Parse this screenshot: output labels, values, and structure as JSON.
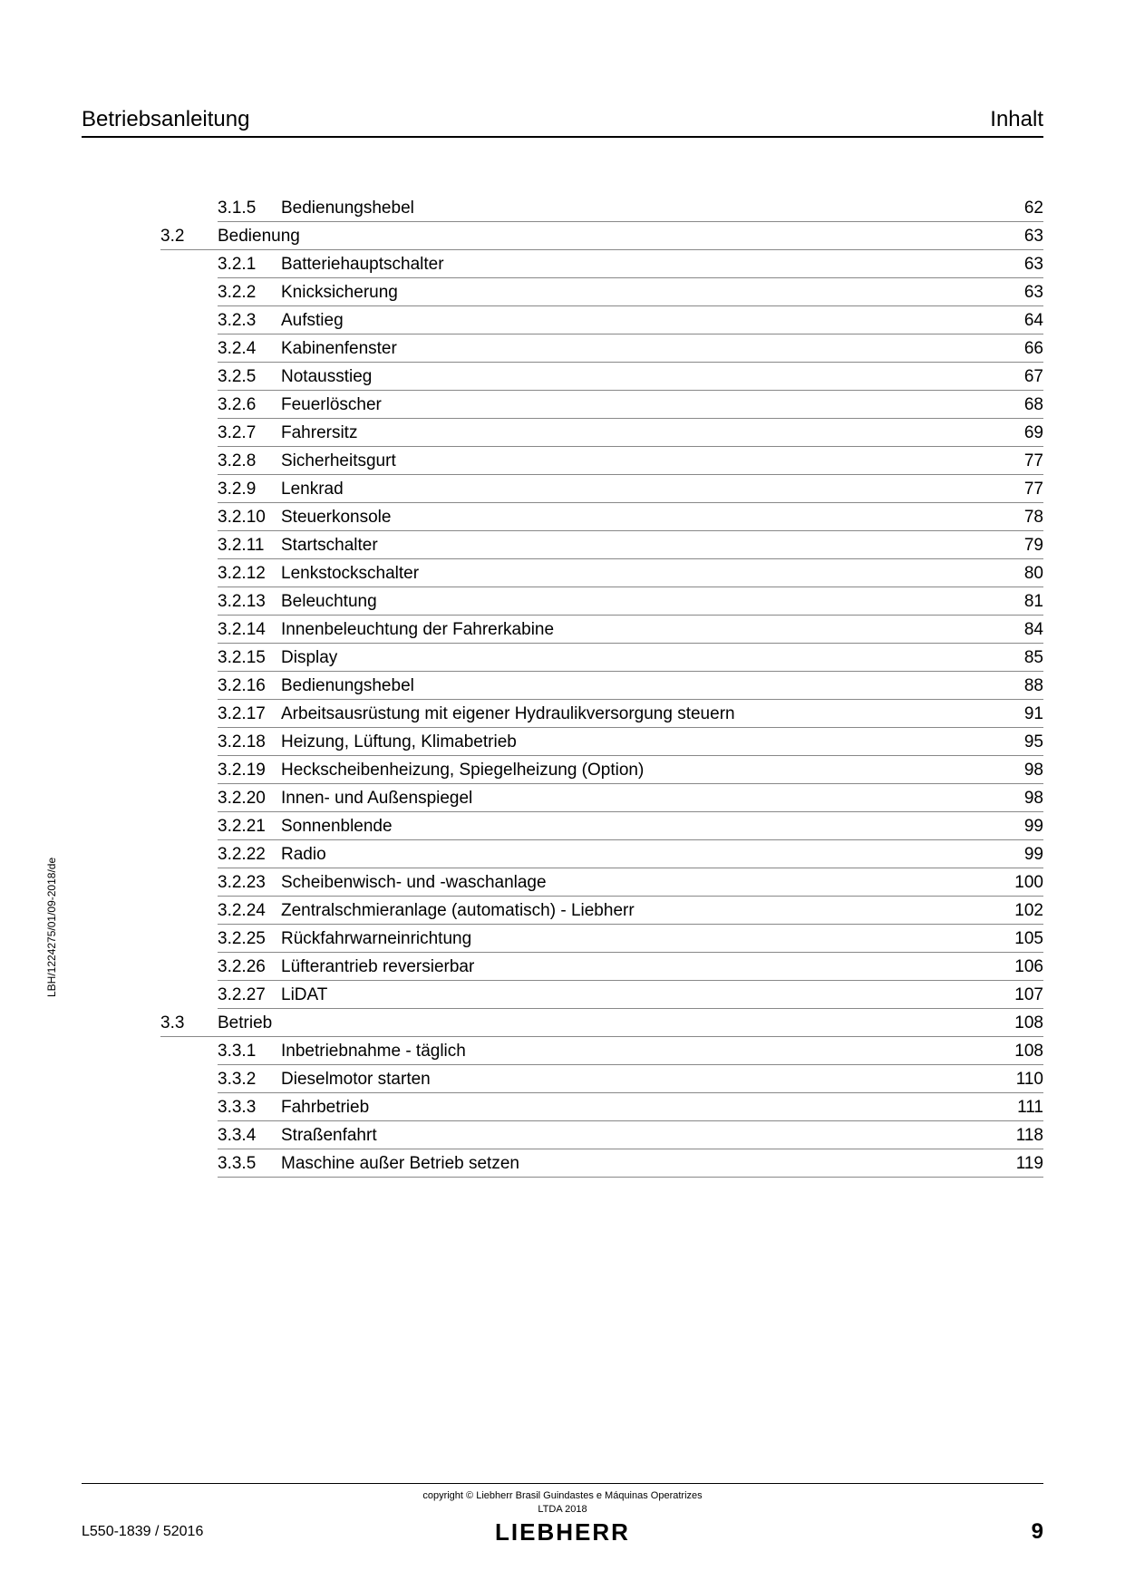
{
  "header": {
    "left": "Betriebsanleitung",
    "right": "Inhalt"
  },
  "toc": {
    "entries": [
      {
        "type": "sub",
        "num": "3.1.5",
        "title": "Bedienungshebel",
        "page": "62"
      },
      {
        "type": "section",
        "num": "3.2",
        "title": "Bedienung",
        "page": "63"
      },
      {
        "type": "sub",
        "num": "3.2.1",
        "title": "Batteriehauptschalter",
        "page": "63"
      },
      {
        "type": "sub",
        "num": "3.2.2",
        "title": "Knicksicherung",
        "page": "63"
      },
      {
        "type": "sub",
        "num": "3.2.3",
        "title": "Aufstieg",
        "page": "64"
      },
      {
        "type": "sub",
        "num": "3.2.4",
        "title": "Kabinenfenster",
        "page": "66"
      },
      {
        "type": "sub",
        "num": "3.2.5",
        "title": "Notausstieg",
        "page": "67"
      },
      {
        "type": "sub",
        "num": "3.2.6",
        "title": "Feuerlöscher",
        "page": "68"
      },
      {
        "type": "sub",
        "num": "3.2.7",
        "title": "Fahrersitz",
        "page": "69"
      },
      {
        "type": "sub",
        "num": "3.2.8",
        "title": "Sicherheitsgurt",
        "page": "77"
      },
      {
        "type": "sub",
        "num": "3.2.9",
        "title": "Lenkrad",
        "page": "77"
      },
      {
        "type": "sub",
        "num": "3.2.10",
        "title": "Steuerkonsole",
        "page": "78"
      },
      {
        "type": "sub",
        "num": "3.2.11",
        "title": "Startschalter",
        "page": "79"
      },
      {
        "type": "sub",
        "num": "3.2.12",
        "title": "Lenkstockschalter",
        "page": "80"
      },
      {
        "type": "sub",
        "num": "3.2.13",
        "title": "Beleuchtung",
        "page": "81"
      },
      {
        "type": "sub",
        "num": "3.2.14",
        "title": "Innenbeleuchtung der Fahrerkabine",
        "page": "84"
      },
      {
        "type": "sub",
        "num": "3.2.15",
        "title": "Display",
        "page": "85"
      },
      {
        "type": "sub",
        "num": "3.2.16",
        "title": "Bedienungshebel",
        "page": "88"
      },
      {
        "type": "sub",
        "num": "3.2.17",
        "title": "Arbeitsausrüstung mit eigener Hydraulikversorgung steuern",
        "page": "91"
      },
      {
        "type": "sub",
        "num": "3.2.18",
        "title": "Heizung, Lüftung, Klimabetrieb",
        "page": "95"
      },
      {
        "type": "sub",
        "num": "3.2.19",
        "title": "Heckscheibenheizung, Spiegelheizung (Option)",
        "page": "98"
      },
      {
        "type": "sub",
        "num": "3.2.20",
        "title": "Innen- und Außenspiegel",
        "page": "98"
      },
      {
        "type": "sub",
        "num": "3.2.21",
        "title": "Sonnenblende",
        "page": "99"
      },
      {
        "type": "sub",
        "num": "3.2.22",
        "title": "Radio",
        "page": "99"
      },
      {
        "type": "sub",
        "num": "3.2.23",
        "title": "Scheibenwisch- und -waschanlage",
        "page": "100"
      },
      {
        "type": "sub",
        "num": "3.2.24",
        "title": "Zentralschmieranlage (automatisch) - Liebherr",
        "page": "102"
      },
      {
        "type": "sub",
        "num": "3.2.25",
        "title": "Rückfahrwarneinrichtung",
        "page": "105"
      },
      {
        "type": "sub",
        "num": "3.2.26",
        "title": "Lüfterantrieb reversierbar",
        "page": "106"
      },
      {
        "type": "sub",
        "num": "3.2.27",
        "title": "LiDAT",
        "page": "107"
      },
      {
        "type": "section",
        "num": "3.3",
        "title": "Betrieb",
        "page": "108"
      },
      {
        "type": "sub",
        "num": "3.3.1",
        "title": "Inbetriebnahme - täglich",
        "page": "108"
      },
      {
        "type": "sub",
        "num": "3.3.2",
        "title": "Dieselmotor starten",
        "page": "110"
      },
      {
        "type": "sub",
        "num": "3.3.3",
        "title": "Fahrbetrieb",
        "page": "111"
      },
      {
        "type": "sub",
        "num": "3.3.4",
        "title": "Straßenfahrt",
        "page": "118"
      },
      {
        "type": "sub",
        "num": "3.3.5",
        "title": "Maschine außer Betrieb setzen",
        "page": "119"
      }
    ]
  },
  "side_text": "LBH/1224275/01/09-2018/de",
  "footer": {
    "copyright_line1": "copyright © Liebherr Brasil Guindastes e Máquinas Operatrizes",
    "copyright_line2": "LTDA 2018",
    "doc_id": "L550-1839 / 52016",
    "logo": "LIEBHERR",
    "page_num": "9"
  }
}
